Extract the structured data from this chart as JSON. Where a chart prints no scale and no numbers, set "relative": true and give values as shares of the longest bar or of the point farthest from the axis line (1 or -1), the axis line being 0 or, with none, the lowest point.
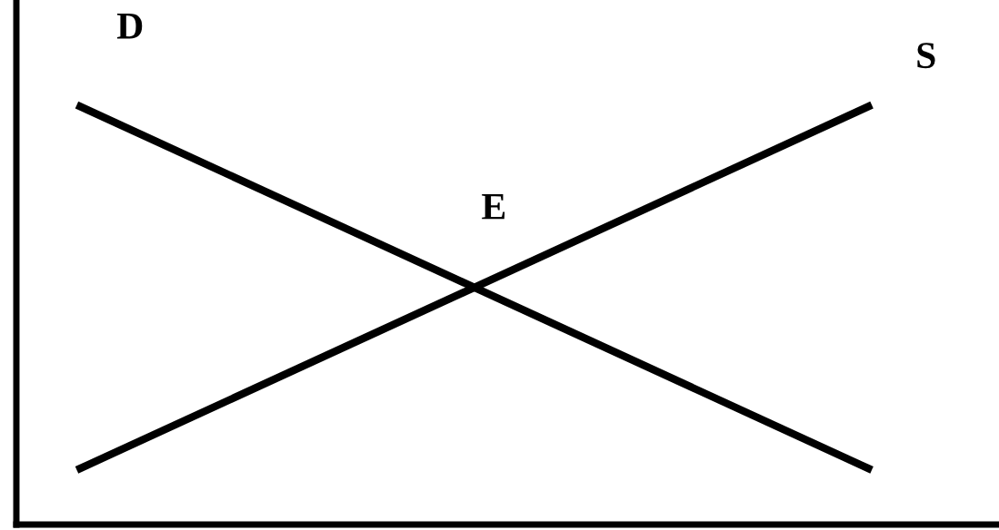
{
  "chart_data": {
    "type": "line",
    "relative": true,
    "categories": [
      null,
      null
    ],
    "series": [
      {
        "name": "D",
        "color": "#000000",
        "values": [
          1,
          0.13
        ]
      },
      {
        "name": "S",
        "color": "#000000",
        "values": [
          0.13,
          1
        ]
      }
    ],
    "annotations": [
      "E"
    ],
    "marker": "none",
    "line_style": "solid"
  }
}
